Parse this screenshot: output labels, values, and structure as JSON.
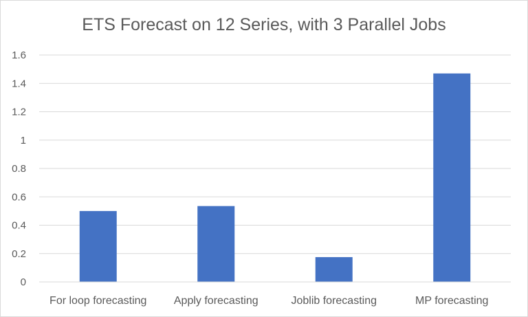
{
  "chart_data": {
    "type": "bar",
    "title": "ETS Forecast on 12 Series, with 3 Parallel Jobs",
    "xlabel": "",
    "ylabel": "",
    "categories": [
      "For loop forecasting",
      "Apply forecasting",
      "Joblib forecasting",
      "MP forecasting"
    ],
    "values": [
      0.5,
      0.535,
      0.175,
      1.47
    ],
    "ylim": [
      0,
      1.6
    ],
    "yticks": [
      "0",
      "0.2",
      "0.4",
      "0.6",
      "0.8",
      "1",
      "1.2",
      "1.4",
      "1.6"
    ],
    "grid": true,
    "legend": "none",
    "bar_color": "#4472c4",
    "grid_color": "#d9d9d9"
  }
}
